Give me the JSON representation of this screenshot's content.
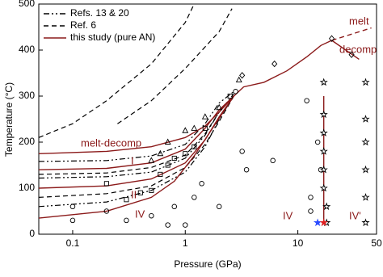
{
  "chart_data": {
    "type": "phase-diagram",
    "xlabel": "Pressure (GPa)",
    "ylabel": "Temperature (°C)",
    "xscale": "log",
    "xlim": [
      0.05,
      50
    ],
    "ylim": [
      0,
      500
    ],
    "xticks": [
      0.1,
      1,
      10,
      50
    ],
    "yticks": [
      0,
      100,
      200,
      300,
      400,
      500
    ],
    "series": [
      {
        "name": "Refs. 13 & 20",
        "color": "#000000",
        "style": "dashdot",
        "curves": [
          {
            "x": [
              0.05,
              0.2,
              0.5,
              1,
              1.5,
              2,
              2.7
            ],
            "y": [
              158,
              160,
              170,
              195,
              240,
              285,
              310
            ]
          },
          {
            "x": [
              0.05,
              0.2,
              0.5,
              1,
              1.5,
              2,
              2.7
            ],
            "y": [
              122,
              125,
              135,
              165,
              215,
              265,
              305
            ]
          },
          {
            "x": [
              0.05,
              0.2,
              0.5,
              1,
              1.5,
              2,
              2.7
            ],
            "y": [
              60,
              70,
              95,
              135,
              190,
              250,
              300
            ]
          }
        ]
      },
      {
        "name": "Ref. 6",
        "color": "#000000",
        "style": "dashed",
        "curves": [
          {
            "x": [
              0.05,
              0.1,
              0.2,
              0.5,
              1,
              1.2
            ],
            "y": [
              210,
              240,
              290,
              370,
              460,
              500
            ]
          },
          {
            "x": [
              0.25,
              0.5,
              1,
              2,
              2.6
            ],
            "y": [
              240,
              290,
              360,
              440,
              490
            ]
          },
          {
            "x": [
              0.05,
              0.2,
              0.5,
              1,
              1.5,
              2,
              2.7
            ],
            "y": [
              130,
              133,
              145,
              172,
              218,
              265,
              300
            ]
          },
          {
            "x": [
              0.05,
              0.2,
              0.5,
              1,
              1.5,
              2,
              2.7
            ],
            "y": [
              80,
              88,
              105,
              145,
              195,
              245,
              300
            ]
          }
        ]
      },
      {
        "name": "this study (pure AN)",
        "color": "#8b1a1a",
        "style": "solid",
        "curves": [
          {
            "x": [
              0.05,
              0.2,
              0.5,
              1,
              1.5,
              2,
              2.7,
              3.3,
              5,
              8,
              12,
              16,
              20
            ],
            "y": [
              175,
              180,
              190,
              210,
              235,
              265,
              300,
              320,
              330,
              355,
              385,
              410,
              421
            ]
          },
          {
            "x": [
              0.05,
              0.2,
              0.5,
              1,
              1.5,
              2,
              2.7
            ],
            "y": [
              140,
              143,
              155,
              185,
              230,
              270,
              300
            ]
          },
          {
            "x": [
              0.05,
              0.2,
              0.5,
              1,
              1.5,
              2,
              2.7
            ],
            "y": [
              100,
              105,
              120,
              155,
              205,
              255,
              300
            ]
          },
          {
            "x": [
              0.05,
              0.2,
              0.5,
              0.8,
              1.2,
              1.8,
              2.7
            ],
            "y": [
              35,
              50,
              80,
              115,
              170,
              235,
              300
            ]
          },
          {
            "x": [
              17,
              17
            ],
            "y": [
              25,
              300
            ]
          },
          {
            "x": [
              20,
              35
            ],
            "y": [
              421,
              380
            ]
          },
          {
            "x": [
              20,
              45
            ],
            "y": [
              421,
              448
            ],
            "dashed": true
          }
        ]
      }
    ],
    "markers": [
      {
        "shape": "circle",
        "color": "#000000",
        "x": [
          0.1,
          0.1,
          0.2,
          0.3,
          0.5,
          0.7,
          0.8,
          1,
          1.2,
          1.4,
          2,
          2.8,
          3.2,
          3.5,
          6,
          12,
          13,
          13,
          15,
          16
        ],
        "y": [
          30,
          60,
          50,
          30,
          40,
          20,
          60,
          20,
          80,
          110,
          60,
          310,
          180,
          140,
          160,
          290,
          80,
          50,
          200,
          140
        ]
      },
      {
        "shape": "square",
        "color": "#000000",
        "x": [
          0.2,
          0.3,
          0.4,
          0.5,
          0.6,
          0.7,
          0.8,
          1,
          1.2,
          1.5,
          2.5
        ],
        "y": [
          110,
          75,
          90,
          95,
          130,
          150,
          165,
          175,
          190,
          230,
          300
        ]
      },
      {
        "shape": "triangle",
        "color": "#000000",
        "x": [
          0.5,
          0.6,
          0.7,
          1,
          1.2,
          1.5,
          2,
          3
        ],
        "y": [
          160,
          175,
          200,
          225,
          230,
          255,
          275,
          335
        ]
      },
      {
        "shape": "diamond",
        "color": "#000000",
        "x": [
          3.2,
          6.2,
          20,
          30
        ],
        "y": [
          345,
          370,
          425,
          390
        ]
      },
      {
        "shape": "star",
        "color": "#000000",
        "x": [
          17,
          17,
          17,
          17,
          17,
          17,
          18,
          18,
          40,
          40,
          40,
          40,
          40,
          40
        ],
        "y": [
          330,
          260,
          220,
          180,
          140,
          100,
          60,
          25,
          330,
          250,
          200,
          140,
          80,
          25
        ]
      },
      {
        "shape": "star",
        "color": "#2b4cff",
        "x": [
          15
        ],
        "y": [
          25
        ]
      },
      {
        "shape": "star",
        "color": "#e02020",
        "x": [
          17
        ],
        "y": [
          25
        ]
      }
    ],
    "annotations": [
      "melt",
      "decomp",
      "melt-decomp",
      "I",
      "II",
      "IV",
      "IV",
      "IV'"
    ],
    "annotation_color": "#8b1a1a",
    "legend": "upper left"
  }
}
